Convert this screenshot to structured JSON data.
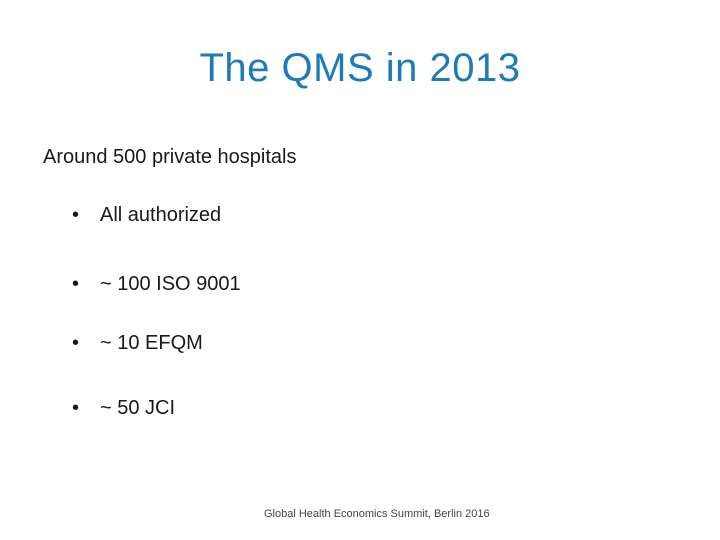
{
  "slide": {
    "title": "The QMS in 2013",
    "intro": "Around 500 private hospitals",
    "bullet_glyph": "•",
    "bullets": [
      "All authorized",
      "~ 100 ISO 9001",
      "~ 10 EFQM",
      "~ 50 JCI"
    ],
    "footer": "Global Health Economics Summit, Berlin 2016",
    "colors": {
      "title": "#1f7ab8",
      "text": "#1a1a1a",
      "background": "#ffffff"
    }
  }
}
